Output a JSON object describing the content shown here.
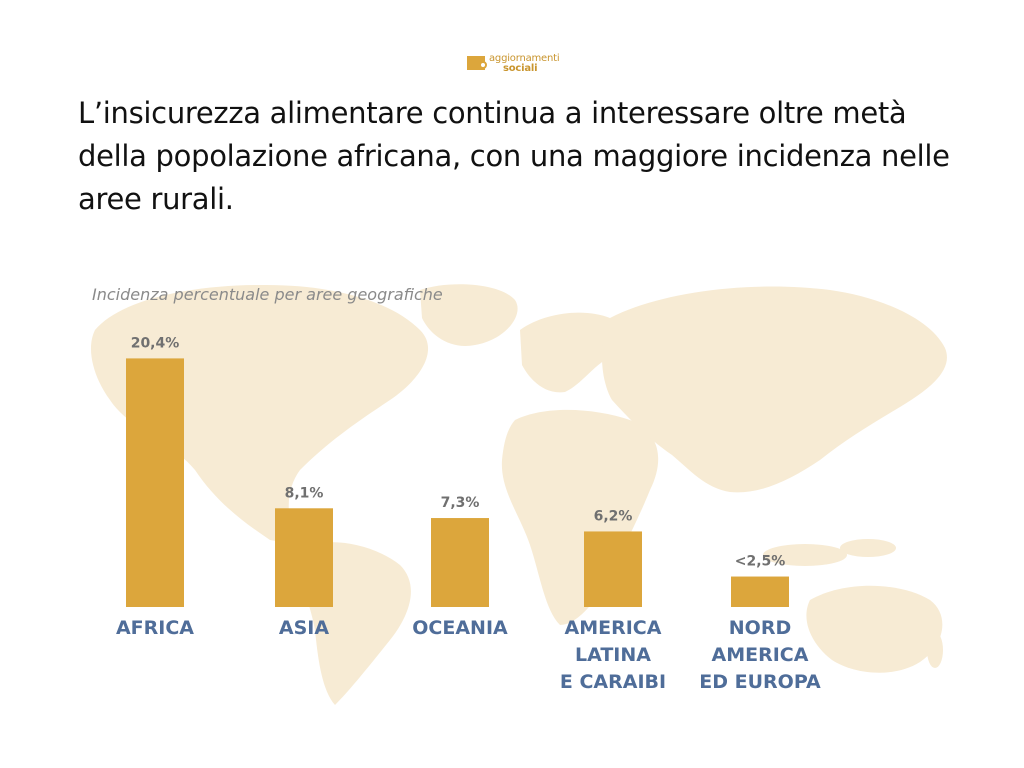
{
  "logo": {
    "line1": "aggiornamenti",
    "line2": "sociali"
  },
  "headline": "L’insicurezza alimentare continua a interessare oltre metà della popolazione africana, con una maggiore incidenza nelle aree rurali.",
  "colors": {
    "bar": "#dca63c",
    "map": "#f7ebd4",
    "category": "#4f6d99",
    "value": "#707070"
  },
  "chart_data": {
    "type": "bar",
    "subtitle": "Incidenza percentuale per aree geografiche",
    "categories": [
      [
        "AFRICA"
      ],
      [
        "ASIA"
      ],
      [
        "OCEANIA"
      ],
      [
        "AMERICA",
        "LATINA",
        "E CARAIBI"
      ],
      [
        "NORD",
        "AMERICA",
        "ED EUROPA"
      ]
    ],
    "values": [
      20.4,
      8.1,
      7.3,
      6.2,
      2.5
    ],
    "value_labels": [
      "20,4%",
      "8,1%",
      "7,3%",
      "6,2%",
      "<2,5%"
    ],
    "ylim": [
      0,
      21.5
    ],
    "grid": false,
    "legend": false
  }
}
